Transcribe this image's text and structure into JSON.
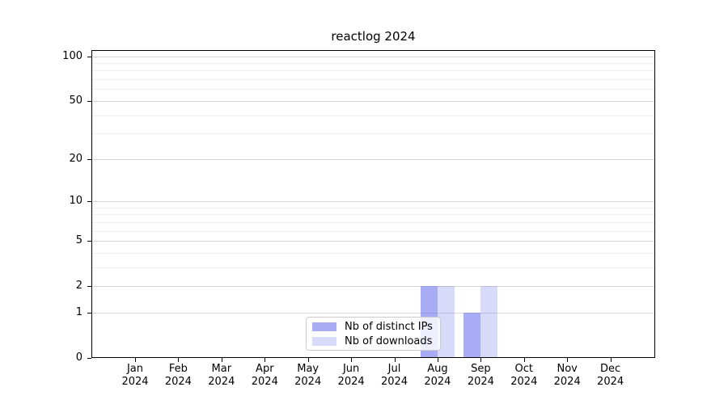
{
  "chart_data": {
    "type": "bar",
    "title": "reactlog 2024",
    "categories": [
      {
        "month": "Jan",
        "year": "2024"
      },
      {
        "month": "Feb",
        "year": "2024"
      },
      {
        "month": "Mar",
        "year": "2024"
      },
      {
        "month": "Apr",
        "year": "2024"
      },
      {
        "month": "May",
        "year": "2024"
      },
      {
        "month": "Jun",
        "year": "2024"
      },
      {
        "month": "Jul",
        "year": "2024"
      },
      {
        "month": "Aug",
        "year": "2024"
      },
      {
        "month": "Sep",
        "year": "2024"
      },
      {
        "month": "Oct",
        "year": "2024"
      },
      {
        "month": "Nov",
        "year": "2024"
      },
      {
        "month": "Dec",
        "year": "2024"
      }
    ],
    "series": [
      {
        "name": "Nb of distinct IPs",
        "color": "rgba(100,107,237,0.56)",
        "legend_color": "#a8acf2",
        "values": [
          0,
          0,
          0,
          0,
          0,
          0,
          0,
          2,
          1,
          0,
          0,
          0
        ]
      },
      {
        "name": "Nb of downloads",
        "color": "rgba(100,107,237,0.25)",
        "legend_color": "#d8daf8",
        "values": [
          0,
          0,
          0,
          0,
          0,
          0,
          0,
          2,
          2,
          0,
          0,
          0
        ]
      }
    ],
    "y_axis": {
      "scale": "log1p",
      "ticks": [
        0,
        1,
        2,
        5,
        10,
        20,
        50,
        100
      ],
      "minor_gridlines": [
        3,
        4,
        6,
        7,
        8,
        9,
        30,
        40,
        60,
        70,
        80,
        90
      ],
      "ylim": [
        0,
        110
      ]
    },
    "legend": {
      "position": "lower center",
      "entries": [
        "Nb of distinct IPs",
        "Nb of downloads"
      ]
    },
    "grid": true,
    "colors": {
      "grid_major": "#d8d8d8",
      "grid_minor": "#efefef",
      "spine": "#000000",
      "background": "#ffffff"
    }
  }
}
